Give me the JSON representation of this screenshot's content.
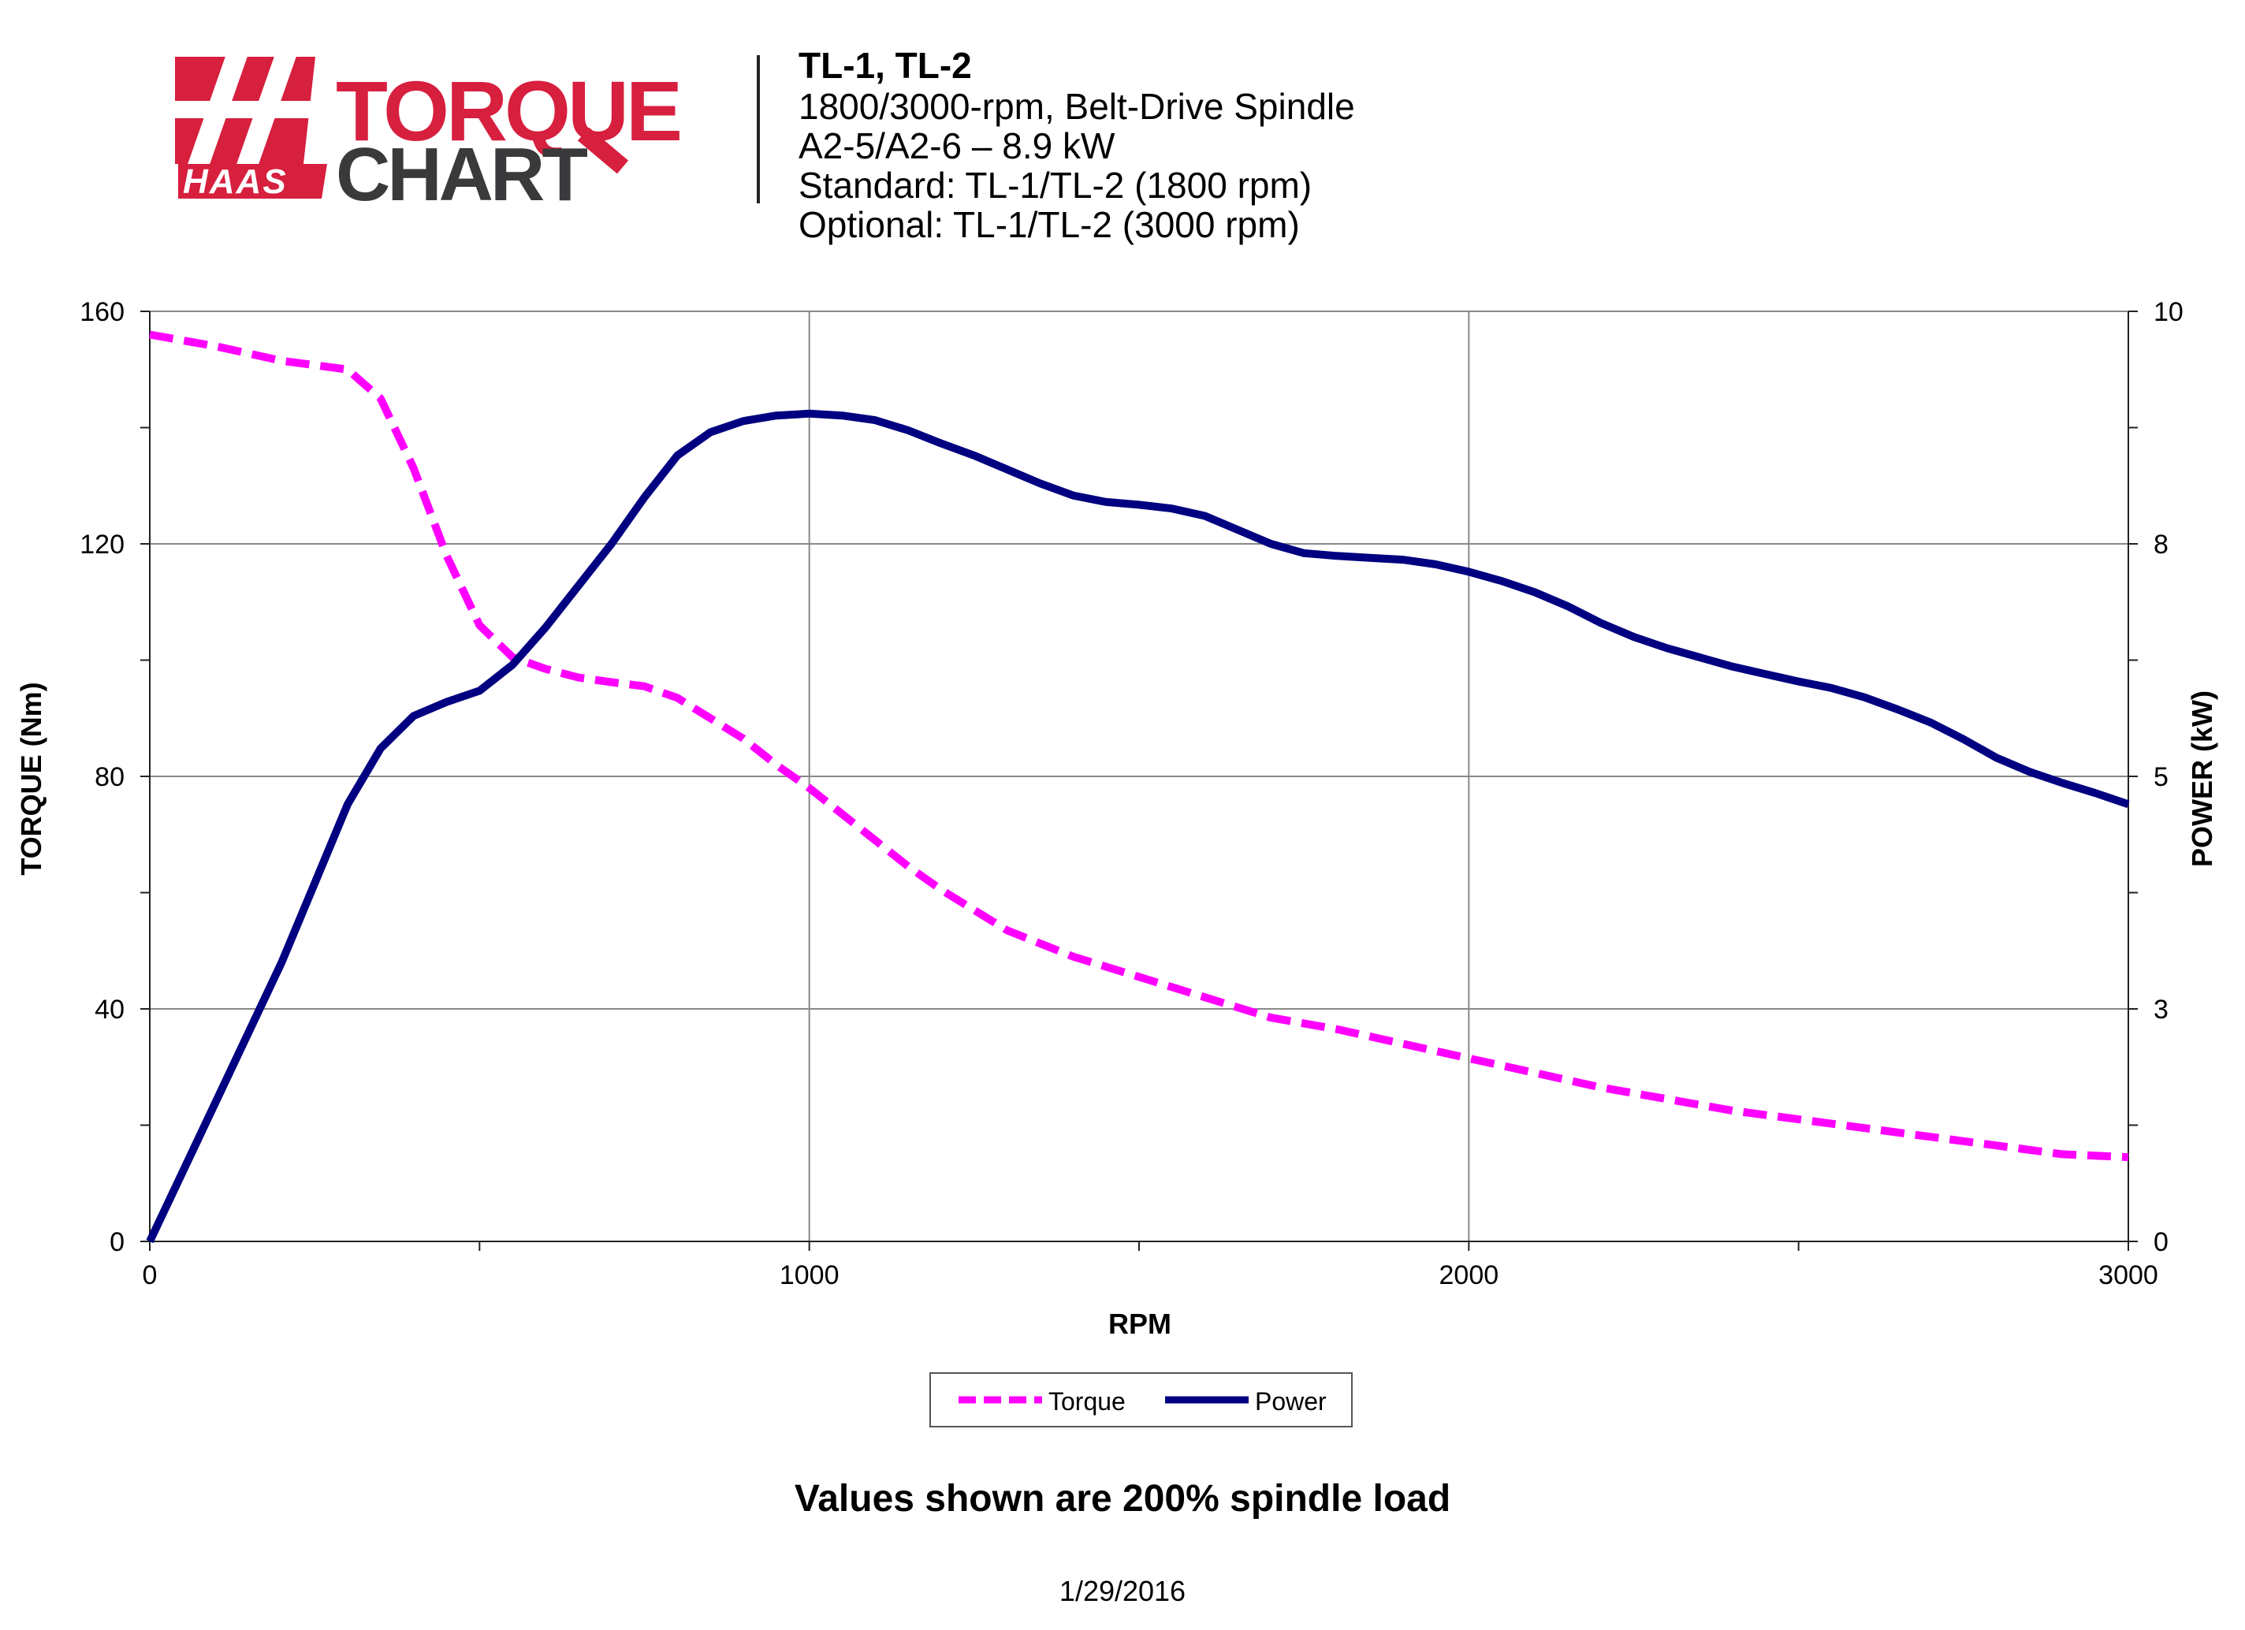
{
  "logo": {
    "brand": "HAAS",
    "word1": "TORQUE",
    "word2": "CHART",
    "brand_color": "#d71f3e",
    "dark_color": "#3a3a3c"
  },
  "header": {
    "title": "TL-1, TL-2",
    "lines": [
      "1800/3000-rpm, Belt-Drive Spindle",
      "A2-5/A2-6 – 8.9 kW",
      "Standard: TL-1/TL-2 (1800 rpm)",
      "Optional: TL-1/TL-2 (3000 rpm)"
    ]
  },
  "footnote": "Values shown are 200% spindle load",
  "date": "1/29/2016",
  "chart_data": {
    "type": "line",
    "xlabel": "RPM",
    "ylabel": "TORQUE (Nm)",
    "y2label": "POWER (kW)",
    "xlim": [
      0,
      3000
    ],
    "ylim": [
      0,
      160
    ],
    "y2lim": [
      0,
      10
    ],
    "x_ticks": [
      "0",
      "1000",
      "2000",
      "3000"
    ],
    "y_ticks": [
      "0",
      "40",
      "80",
      "120",
      "160"
    ],
    "y2_ticks": [
      "0",
      "3",
      "5",
      "8",
      "10"
    ],
    "grid": true,
    "legend_position": "bottom-center",
    "series": [
      {
        "name": "Torque",
        "axis": "left",
        "color": "#ff00ff",
        "style": "dashed",
        "points": [
          [
            0,
            156
          ],
          [
            100,
            154
          ],
          [
            200,
            151.5
          ],
          [
            300,
            150
          ],
          [
            350,
            145
          ],
          [
            400,
            133
          ],
          [
            450,
            118
          ],
          [
            500,
            106
          ],
          [
            550,
            100.5
          ],
          [
            600,
            98.5
          ],
          [
            650,
            97
          ],
          [
            700,
            96.2
          ],
          [
            750,
            95.5
          ],
          [
            800,
            93.5
          ],
          [
            850,
            90
          ],
          [
            900,
            86.5
          ],
          [
            950,
            82
          ],
          [
            1000,
            78
          ],
          [
            1050,
            73.5
          ],
          [
            1100,
            69
          ],
          [
            1150,
            64.5
          ],
          [
            1200,
            60.5
          ],
          [
            1300,
            53.5
          ],
          [
            1400,
            49
          ],
          [
            1500,
            45.5
          ],
          [
            1600,
            42
          ],
          [
            1700,
            38.5
          ],
          [
            1800,
            36.5
          ],
          [
            1900,
            34
          ],
          [
            2000,
            31.5
          ],
          [
            2100,
            29
          ],
          [
            2200,
            26.5
          ],
          [
            2300,
            24.5
          ],
          [
            2400,
            22.5
          ],
          [
            2500,
            21
          ],
          [
            2600,
            19.5
          ],
          [
            2700,
            18
          ],
          [
            2800,
            16.5
          ],
          [
            2900,
            15
          ],
          [
            3000,
            14.5
          ]
        ]
      },
      {
        "name": "Power",
        "axis": "right",
        "color": "#000080",
        "style": "solid",
        "points": [
          [
            0,
            0
          ],
          [
            100,
            1.5
          ],
          [
            200,
            3
          ],
          [
            250,
            3.85
          ],
          [
            300,
            4.7
          ],
          [
            350,
            5.3
          ],
          [
            400,
            5.65
          ],
          [
            450,
            5.8
          ],
          [
            500,
            5.92
          ],
          [
            550,
            6.2
          ],
          [
            600,
            6.6
          ],
          [
            650,
            7.05
          ],
          [
            700,
            7.5
          ],
          [
            750,
            8
          ],
          [
            800,
            8.45
          ],
          [
            850,
            8.7
          ],
          [
            900,
            8.82
          ],
          [
            950,
            8.88
          ],
          [
            1000,
            8.9
          ],
          [
            1050,
            8.88
          ],
          [
            1100,
            8.83
          ],
          [
            1150,
            8.72
          ],
          [
            1200,
            8.58
          ],
          [
            1250,
            8.45
          ],
          [
            1300,
            8.3
          ],
          [
            1350,
            8.15
          ],
          [
            1400,
            8.02
          ],
          [
            1450,
            7.95
          ],
          [
            1500,
            7.92
          ],
          [
            1550,
            7.88
          ],
          [
            1600,
            7.8
          ],
          [
            1650,
            7.65
          ],
          [
            1700,
            7.5
          ],
          [
            1750,
            7.4
          ],
          [
            1800,
            7.37
          ],
          [
            1850,
            7.35
          ],
          [
            1900,
            7.33
          ],
          [
            1950,
            7.28
          ],
          [
            2000,
            7.2
          ],
          [
            2050,
            7.1
          ],
          [
            2100,
            6.98
          ],
          [
            2150,
            6.83
          ],
          [
            2200,
            6.65
          ],
          [
            2250,
            6.5
          ],
          [
            2300,
            6.38
          ],
          [
            2350,
            6.28
          ],
          [
            2400,
            6.18
          ],
          [
            2450,
            6.1
          ],
          [
            2500,
            6.02
          ],
          [
            2550,
            5.95
          ],
          [
            2600,
            5.85
          ],
          [
            2650,
            5.72
          ],
          [
            2700,
            5.58
          ],
          [
            2750,
            5.4
          ],
          [
            2800,
            5.2
          ],
          [
            2850,
            5.05
          ],
          [
            2900,
            4.93
          ],
          [
            2950,
            4.82
          ],
          [
            3000,
            4.7
          ]
        ]
      }
    ]
  }
}
